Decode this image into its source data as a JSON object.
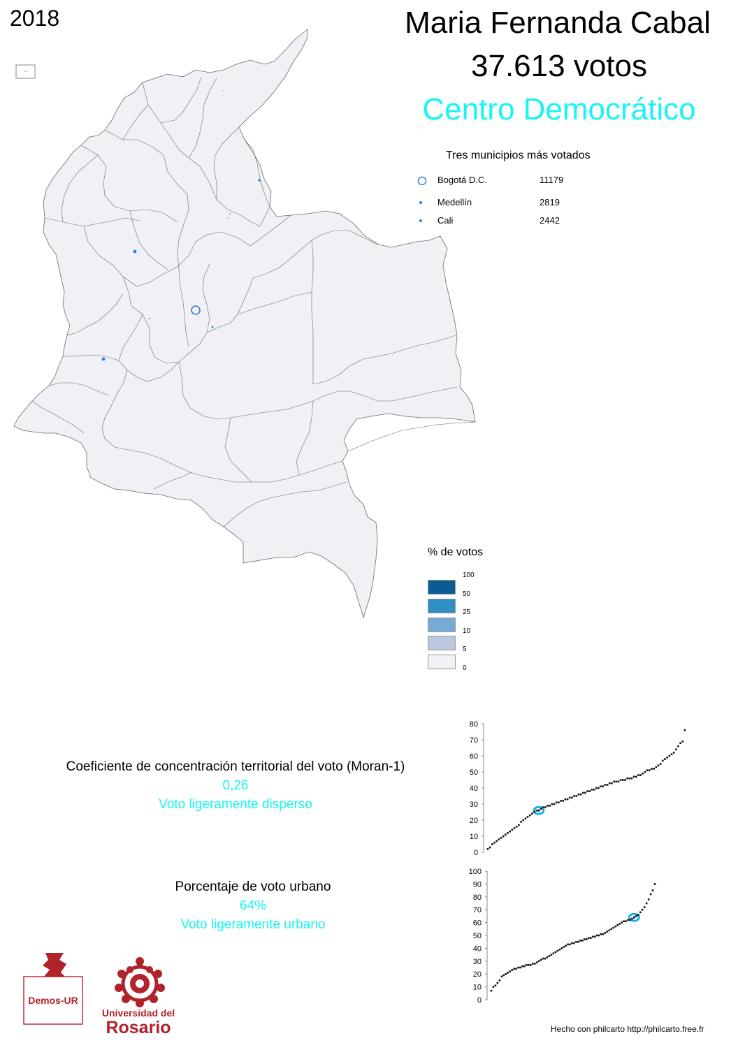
{
  "year": "2018",
  "candidate": {
    "name": "Maria Fernanda Cabal",
    "votes": "37.613 votos",
    "party": "Centro Democrático"
  },
  "top_municipalities": {
    "title": "Tres municipios más votados",
    "items": [
      {
        "name": "Bogotá D.C.",
        "votes": "11179",
        "symbol": "circle-outline"
      },
      {
        "name": "Medellín",
        "votes": "2819",
        "symbol": "dot"
      },
      {
        "name": "Cali",
        "votes": "2442",
        "symbol": "dot"
      }
    ]
  },
  "legend": {
    "title": "% de votos",
    "labels": [
      "100",
      "50",
      "25",
      "10",
      "5",
      "0"
    ],
    "colors": [
      "#0b5c93",
      "#2f8fc4",
      "#78abd3",
      "#bcc6df",
      "#f2f0f5"
    ]
  },
  "colors": {
    "map_fill": "#f1f0f5",
    "map_stroke": "#6a6a6a",
    "accent": "#17f4f4",
    "point": "#2b7fe0",
    "highlight": "#18b3e8",
    "brand_red": "#b0232a"
  },
  "stats": {
    "moran": {
      "title": "Coeficiente de concentración territorial del voto (Moran-1)",
      "value": "0,26",
      "label": "Voto ligeramente disperso"
    },
    "urban": {
      "title": "Porcentaje de voto urbano",
      "value": "64%",
      "label": "Voto ligeramente urbano"
    }
  },
  "chart_data": [
    {
      "type": "scatter",
      "name_hint": "moran ranking",
      "ylim": [
        0,
        80
      ],
      "yticks": [
        0,
        10,
        20,
        30,
        40,
        50,
        60,
        70,
        80
      ],
      "y": [
        2,
        3,
        5,
        6,
        7,
        8,
        9,
        10,
        11,
        12,
        13,
        14,
        15,
        16,
        17,
        19,
        20,
        21,
        22,
        23,
        24,
        25,
        26,
        26,
        27,
        28,
        28,
        29,
        29,
        30,
        30,
        31,
        31,
        32,
        32,
        33,
        33,
        34,
        34,
        35,
        35,
        36,
        36,
        37,
        37,
        38,
        38,
        39,
        39,
        40,
        40,
        41,
        41,
        42,
        42,
        43,
        43,
        44,
        44,
        44,
        45,
        45,
        45,
        46,
        46,
        46,
        47,
        47,
        48,
        48,
        49,
        50,
        51,
        51,
        52,
        52,
        53,
        54,
        55,
        57,
        58,
        59,
        60,
        61,
        62,
        64,
        66,
        68,
        69,
        76
      ],
      "highlight": {
        "rank": 23,
        "value": 26
      }
    },
    {
      "type": "scatter",
      "name_hint": "urban ranking",
      "ylim": [
        0,
        100
      ],
      "yticks": [
        0,
        10,
        20,
        30,
        40,
        50,
        60,
        70,
        80,
        90,
        100
      ],
      "y": [
        7,
        10,
        11,
        13,
        15,
        18,
        19,
        20,
        21,
        22,
        23,
        24,
        24,
        25,
        25,
        26,
        26,
        27,
        27,
        27,
        28,
        28,
        29,
        30,
        31,
        32,
        32,
        33,
        34,
        35,
        36,
        37,
        38,
        39,
        40,
        41,
        42,
        43,
        43,
        44,
        44,
        45,
        45,
        46,
        46,
        47,
        47,
        48,
        48,
        49,
        49,
        50,
        50,
        51,
        51,
        52,
        53,
        54,
        55,
        56,
        57,
        58,
        59,
        60,
        61,
        61,
        62,
        62,
        63,
        64,
        65,
        66,
        68,
        70,
        72,
        75,
        78,
        82,
        85,
        90
      ],
      "highlight": {
        "rank": 69,
        "value": 64
      }
    }
  ],
  "credit": "Hecho con philcarto http://philcarto.free.fr",
  "logos": {
    "demos": "Demos-UR",
    "ur_line1": "Universidad del",
    "ur_line2": "Rosario"
  }
}
